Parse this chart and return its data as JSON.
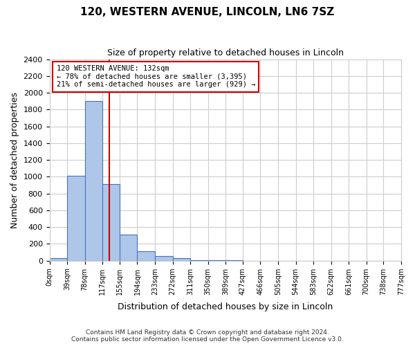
{
  "title": "120, WESTERN AVENUE, LINCOLN, LN6 7SZ",
  "subtitle": "Size of property relative to detached houses in Lincoln",
  "xlabel": "Distribution of detached houses by size in Lincoln",
  "ylabel": "Number of detached properties",
  "annotation_line1": "120 WESTERN AVENUE: 132sqm",
  "annotation_line2": "← 78% of detached houses are smaller (3,395)",
  "annotation_line3": "21% of semi-detached houses are larger (929) →",
  "property_size": 132,
  "bin_edges": [
    0,
    39,
    78,
    117,
    155,
    194,
    233,
    272,
    311,
    350,
    389,
    427,
    466,
    505,
    544,
    583,
    622,
    661,
    700,
    738,
    777
  ],
  "bin_heights": [
    30,
    1010,
    1900,
    910,
    310,
    110,
    55,
    30,
    8,
    3,
    2,
    1,
    1,
    0,
    0,
    0,
    0,
    0,
    0,
    0
  ],
  "bar_color": "#aec6e8",
  "bar_edge_color": "#4472c4",
  "vline_color": "#cc0000",
  "vline_x": 132,
  "annotation_box_edge": "#cc0000",
  "annotation_box_face": "#ffffff",
  "grid_color": "#cccccc",
  "ylim": [
    0,
    2400
  ],
  "yticks": [
    0,
    200,
    400,
    600,
    800,
    1000,
    1200,
    1400,
    1600,
    1800,
    2000,
    2200,
    2400
  ],
  "background_color": "#ffffff",
  "footer_line1": "Contains HM Land Registry data © Crown copyright and database right 2024.",
  "footer_line2": "Contains public sector information licensed under the Open Government Licence v3.0."
}
